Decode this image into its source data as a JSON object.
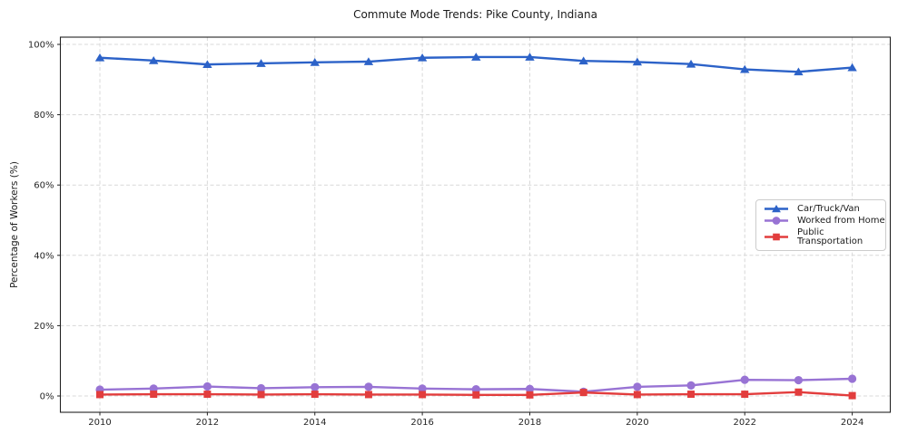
{
  "colors": {
    "car_truck_van": "#2c62c8",
    "worked_from_home": "#9873d4",
    "public_transportation": "#e23d3d",
    "grid": "#d8d8d8",
    "axis": "#222222",
    "text": "#262626",
    "legend_border": "#cccccc",
    "background": "#ffffff"
  },
  "chart_data": {
    "type": "line",
    "title": "Commute Mode Trends: Pike County, Indiana",
    "xlabel": "",
    "ylabel": "Percentage of Workers (%)",
    "x": [
      2010,
      2011,
      2012,
      2013,
      2014,
      2015,
      2016,
      2017,
      2018,
      2019,
      2020,
      2021,
      2022,
      2023,
      2024
    ],
    "xticks": [
      2010,
      2012,
      2014,
      2016,
      2018,
      2020,
      2022,
      2024
    ],
    "yticks": [
      0,
      20,
      40,
      60,
      80,
      100
    ],
    "ytick_suffix": "%",
    "ylim": [
      -4.6,
      102
    ],
    "grid": true,
    "legend_position": "center right",
    "series": [
      {
        "name": "Car/Truck/Van",
        "marker": "triangle",
        "color": "#2c62c8",
        "values": [
          96.2,
          95.4,
          94.3,
          94.6,
          94.9,
          95.1,
          96.2,
          96.4,
          96.4,
          95.3,
          95.0,
          94.4,
          92.9,
          92.2,
          93.4
        ]
      },
      {
        "name": "Worked from Home",
        "marker": "circle",
        "color": "#9873d4",
        "values": [
          1.8,
          2.1,
          2.7,
          2.2,
          2.5,
          2.6,
          2.1,
          1.9,
          2.0,
          1.2,
          2.6,
          3.0,
          4.6,
          4.5,
          4.9
        ]
      },
      {
        "name": "Public Transportation",
        "marker": "square",
        "color": "#e23d3d",
        "values": [
          0.4,
          0.5,
          0.5,
          0.4,
          0.5,
          0.4,
          0.4,
          0.3,
          0.3,
          1.0,
          0.4,
          0.5,
          0.5,
          1.1,
          0.1
        ]
      }
    ]
  }
}
